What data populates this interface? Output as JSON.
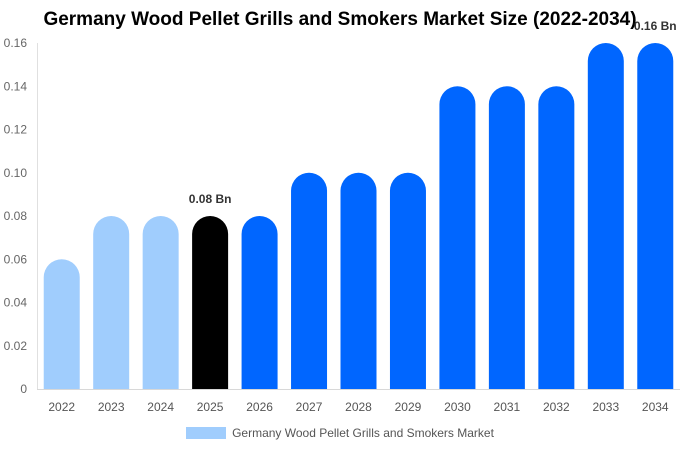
{
  "chart_data": {
    "type": "bar",
    "title": "Germany Wood Pellet Grills and Smokers Market Size (2022-2034)",
    "categories": [
      "2022",
      "2023",
      "2024",
      "2025",
      "2026",
      "2027",
      "2028",
      "2029",
      "2030",
      "2031",
      "2032",
      "2033",
      "2034"
    ],
    "series": [
      {
        "name": "Germany Wood Pellet Grills and Smokers Market",
        "values": [
          0.06,
          0.08,
          0.08,
          0.08,
          0.08,
          0.1,
          0.1,
          0.1,
          0.14,
          0.14,
          0.14,
          0.16,
          0.16
        ]
      }
    ],
    "bar_colors": [
      "#a0cdfd",
      "#a0cdfd",
      "#a0cdfd",
      "#000000",
      "#0066ff",
      "#0066ff",
      "#0066ff",
      "#0066ff",
      "#0066ff",
      "#0066ff",
      "#0066ff",
      "#0066ff",
      "#0066ff"
    ],
    "legend_color": "#a0cdfd",
    "ylim": [
      0,
      0.16
    ],
    "yticks": [
      "0",
      "0.02",
      "0.04",
      "0.06",
      "0.08",
      "0.10",
      "0.12",
      "0.14",
      "0.16"
    ],
    "data_labels": [
      {
        "index": 3,
        "text": "0.08 Bn"
      },
      {
        "index": 12,
        "text": "0.16 Bn"
      }
    ],
    "legend_position": "bottom-center",
    "grid": false
  }
}
